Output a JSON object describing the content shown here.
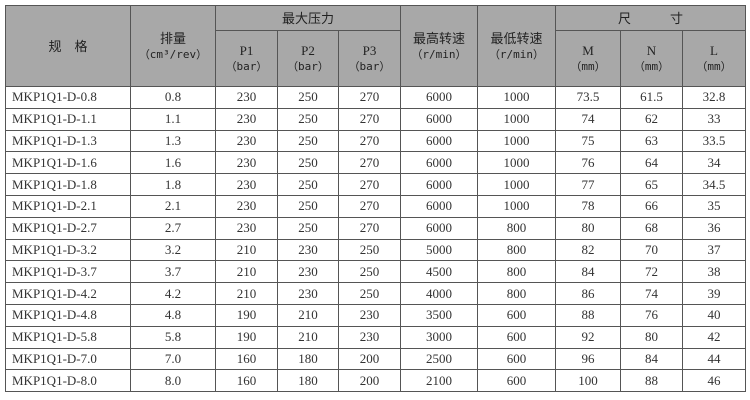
{
  "header": {
    "model": "规　格",
    "displacement": "排量",
    "displacement_unit": "（cm³/rev）",
    "max_pressure": "最大压力",
    "p1": "P1",
    "p2": "P2",
    "p3": "P3",
    "bar_unit": "（bar）",
    "max_speed": "最高转速",
    "min_speed": "最低转速",
    "speed_unit": "（r/min）",
    "dimensions": "尺　　　寸",
    "m": "M",
    "n": "N",
    "l": "L",
    "mm_unit": "（mm）"
  },
  "rows": [
    [
      "MKP1Q1-D-0.8",
      "0.8",
      "230",
      "250",
      "270",
      "6000",
      "1000",
      "73.5",
      "61.5",
      "32.8"
    ],
    [
      "MKP1Q1-D-1.1",
      "1.1",
      "230",
      "250",
      "270",
      "6000",
      "1000",
      "74",
      "62",
      "33"
    ],
    [
      "MKP1Q1-D-1.3",
      "1.3",
      "230",
      "250",
      "270",
      "6000",
      "1000",
      "75",
      "63",
      "33.5"
    ],
    [
      "MKP1Q1-D-1.6",
      "1.6",
      "230",
      "250",
      "270",
      "6000",
      "1000",
      "76",
      "64",
      "34"
    ],
    [
      "MKP1Q1-D-1.8",
      "1.8",
      "230",
      "250",
      "270",
      "6000",
      "1000",
      "77",
      "65",
      "34.5"
    ],
    [
      "MKP1Q1-D-2.1",
      "2.1",
      "230",
      "250",
      "270",
      "6000",
      "1000",
      "78",
      "66",
      "35"
    ],
    [
      "MKP1Q1-D-2.7",
      "2.7",
      "230",
      "250",
      "270",
      "6000",
      "800",
      "80",
      "68",
      "36"
    ],
    [
      "MKP1Q1-D-3.2",
      "3.2",
      "210",
      "230",
      "250",
      "5000",
      "800",
      "82",
      "70",
      "37"
    ],
    [
      "MKP1Q1-D-3.7",
      "3.7",
      "210",
      "230",
      "250",
      "4500",
      "800",
      "84",
      "72",
      "38"
    ],
    [
      "MKP1Q1-D-4.2",
      "4.2",
      "210",
      "230",
      "250",
      "4000",
      "800",
      "86",
      "74",
      "39"
    ],
    [
      "MKP1Q1-D-4.8",
      "4.8",
      "190",
      "210",
      "230",
      "3500",
      "600",
      "88",
      "76",
      "40"
    ],
    [
      "MKP1Q1-D-5.8",
      "5.8",
      "190",
      "210",
      "230",
      "3000",
      "600",
      "92",
      "80",
      "42"
    ],
    [
      "MKP1Q1-D-7.0",
      "7.0",
      "160",
      "180",
      "200",
      "2500",
      "600",
      "96",
      "84",
      "44"
    ],
    [
      "MKP1Q1-D-8.0",
      "8.0",
      "160",
      "180",
      "200",
      "2100",
      "600",
      "100",
      "88",
      "46"
    ]
  ]
}
